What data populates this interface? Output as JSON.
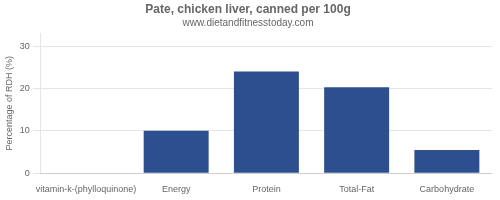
{
  "chart_data": {
    "type": "bar",
    "title": "Pate, chicken liver, canned per 100g",
    "subtitle": "www.dietandfitnesstoday.com",
    "categories": [
      "vitamin-k-(phylloquinone)",
      "Energy",
      "Protein",
      "Total-Fat",
      "Carbohydrate"
    ],
    "values": [
      0,
      10,
      24,
      20.3,
      5.5
    ],
    "color": "#2d4f8e",
    "ylabel": "Percentage of RDH (%)",
    "ylim": [
      0,
      33
    ],
    "yticks": [
      0,
      10,
      20,
      30
    ],
    "grid": true
  }
}
